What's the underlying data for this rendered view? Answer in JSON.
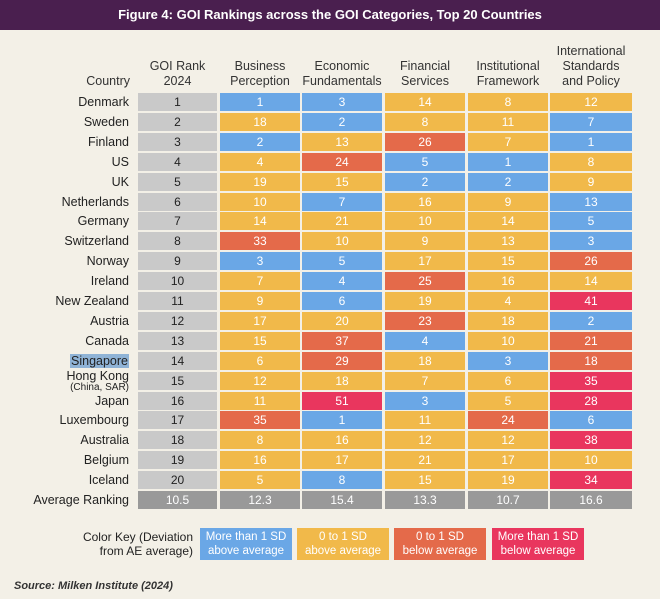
{
  "title": "Figure 4: GOI Rankings across the GOI Categories, Top 20 Countries",
  "headers": {
    "country": "Country",
    "columns": [
      [
        "GOI Rank",
        "2024"
      ],
      [
        "Business",
        "Perception"
      ],
      [
        "Economic",
        "Fundamentals"
      ],
      [
        "Financial",
        "Services"
      ],
      [
        "Institutional",
        "Framework"
      ],
      [
        "International",
        "Standards",
        "and Policy"
      ]
    ]
  },
  "colors": {
    "blue": "#6aa7e6",
    "yellow": "#f1b94a",
    "orange": "#e46a4a",
    "pink": "#e9365e",
    "rank_gray": "#c9c9c9",
    "avg_gray": "#999999",
    "title_bg": "#4a1f4f"
  },
  "chart_data": {
    "type": "table",
    "columns": [
      "GOI Rank 2024",
      "Business Perception",
      "Economic Fundamentals",
      "Financial Services",
      "Institutional Framework",
      "International Standards and Policy"
    ],
    "rows": [
      {
        "country": "Denmark",
        "values": [
          1,
          1,
          3,
          14,
          8,
          12
        ],
        "colors": [
          "b",
          "b",
          "y",
          "y",
          "y"
        ]
      },
      {
        "country": "Sweden",
        "values": [
          2,
          18,
          2,
          8,
          11,
          7
        ],
        "colors": [
          "y",
          "b",
          "y",
          "y",
          "b"
        ]
      },
      {
        "country": "Finland",
        "values": [
          3,
          2,
          13,
          26,
          7,
          1
        ],
        "colors": [
          "b",
          "y",
          "o",
          "y",
          "b"
        ]
      },
      {
        "country": "US",
        "values": [
          4,
          4,
          24,
          5,
          1,
          8
        ],
        "colors": [
          "y",
          "o",
          "b",
          "b",
          "y"
        ]
      },
      {
        "country": "UK",
        "values": [
          5,
          19,
          15,
          2,
          2,
          9
        ],
        "colors": [
          "y",
          "y",
          "b",
          "b",
          "y"
        ]
      },
      {
        "country": "Netherlands",
        "values": [
          6,
          10,
          7,
          16,
          9,
          13
        ],
        "colors": [
          "y",
          "b",
          "y",
          "y",
          "b"
        ]
      },
      {
        "country": "Germany",
        "values": [
          7,
          14,
          21,
          10,
          14,
          5
        ],
        "colors": [
          "y",
          "y",
          "y",
          "y",
          "b"
        ]
      },
      {
        "country": "Switzerland",
        "values": [
          8,
          33,
          10,
          9,
          13,
          3
        ],
        "colors": [
          "o",
          "y",
          "y",
          "y",
          "b"
        ]
      },
      {
        "country": "Norway",
        "values": [
          9,
          3,
          5,
          17,
          15,
          26
        ],
        "colors": [
          "b",
          "b",
          "y",
          "y",
          "o"
        ]
      },
      {
        "country": "Ireland",
        "values": [
          10,
          7,
          4,
          25,
          16,
          14
        ],
        "colors": [
          "y",
          "b",
          "o",
          "y",
          "y"
        ]
      },
      {
        "country": "New Zealand",
        "values": [
          11,
          9,
          6,
          19,
          4,
          41
        ],
        "colors": [
          "y",
          "b",
          "y",
          "y",
          "p"
        ]
      },
      {
        "country": "Austria",
        "values": [
          12,
          17,
          20,
          23,
          18,
          2
        ],
        "colors": [
          "y",
          "y",
          "o",
          "y",
          "b"
        ]
      },
      {
        "country": "Canada",
        "values": [
          13,
          15,
          37,
          4,
          10,
          21
        ],
        "colors": [
          "y",
          "o",
          "b",
          "y",
          "o"
        ]
      },
      {
        "country": "Singapore",
        "values": [
          14,
          6,
          29,
          18,
          3,
          18
        ],
        "colors": [
          "y",
          "o",
          "y",
          "b",
          "o"
        ],
        "highlight": true
      },
      {
        "country": "Hong Kong",
        "subtitle": "(China, SAR)",
        "values": [
          15,
          12,
          18,
          7,
          6,
          35
        ],
        "colors": [
          "y",
          "y",
          "y",
          "y",
          "p"
        ]
      },
      {
        "country": "Japan",
        "values": [
          16,
          11,
          51,
          3,
          5,
          28
        ],
        "colors": [
          "y",
          "p",
          "b",
          "y",
          "p"
        ]
      },
      {
        "country": "Luxembourg",
        "values": [
          17,
          35,
          1,
          11,
          24,
          6
        ],
        "colors": [
          "o",
          "b",
          "y",
          "o",
          "b"
        ]
      },
      {
        "country": "Australia",
        "values": [
          18,
          8,
          16,
          12,
          12,
          38
        ],
        "colors": [
          "y",
          "y",
          "y",
          "y",
          "p"
        ]
      },
      {
        "country": "Belgium",
        "values": [
          19,
          16,
          17,
          21,
          17,
          10
        ],
        "colors": [
          "y",
          "y",
          "y",
          "y",
          "y"
        ]
      },
      {
        "country": "Iceland",
        "values": [
          20,
          5,
          8,
          15,
          19,
          34
        ],
        "colors": [
          "y",
          "b",
          "y",
          "y",
          "p"
        ]
      }
    ],
    "average": {
      "label": "Average Ranking",
      "values": [
        "10.5",
        "12.3",
        "15.4",
        "13.3",
        "10.7",
        "16.6"
      ]
    }
  },
  "color_key": {
    "label_line1": "Color Key (Deviation",
    "label_line2": "from AE average)",
    "items": [
      {
        "code": "b",
        "line1": "More than 1 SD",
        "line2": "above average"
      },
      {
        "code": "y",
        "line1": "0 to 1 SD",
        "line2": "above average"
      },
      {
        "code": "o",
        "line1": "0 to 1 SD",
        "line2": "below average"
      },
      {
        "code": "p",
        "line1": "More than 1 SD",
        "line2": "below average"
      }
    ]
  },
  "source": "Source: Milken Institute (2024)"
}
